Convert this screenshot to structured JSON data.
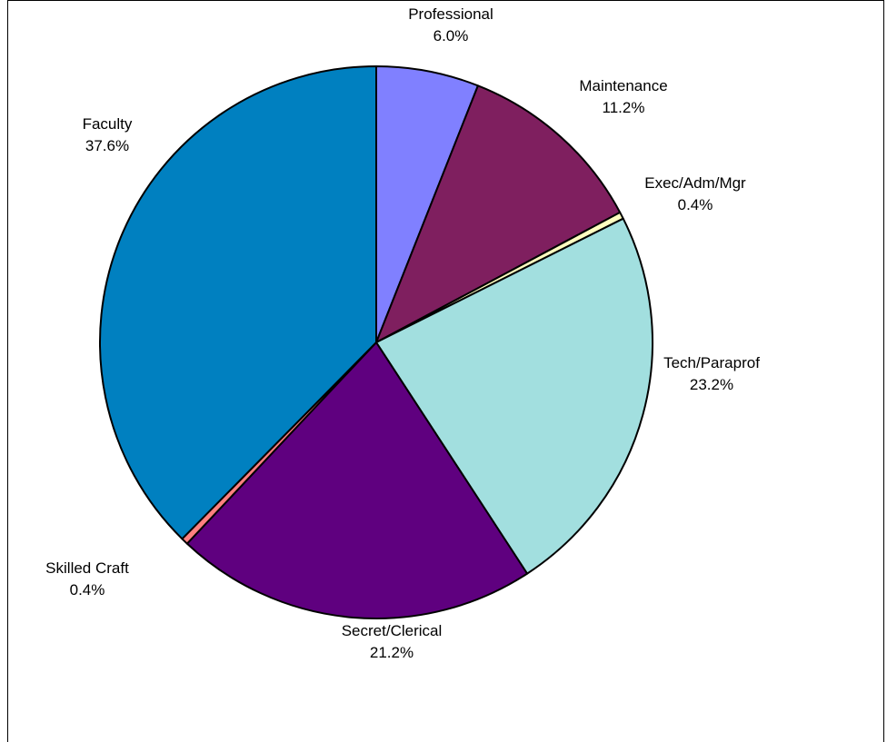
{
  "chart_data": {
    "type": "pie",
    "start_angle_deg": 0,
    "direction": "clockwise",
    "slices": [
      {
        "label": "Professional",
        "value_label": "6.0%",
        "value": 6.0,
        "color": "#8080FF"
      },
      {
        "label": "Maintenance",
        "value_label": "11.2%",
        "value": 11.2,
        "color": "#7F1F5F"
      },
      {
        "label": "Exec/Adm/Mgr",
        "value_label": "0.4%",
        "value": 0.4,
        "color": "#FFFFC0"
      },
      {
        "label": "Tech/Paraprof",
        "value_label": "23.2%",
        "value": 23.2,
        "color": "#A2DFDF"
      },
      {
        "label": "Secret/Clerical",
        "value_label": "21.2%",
        "value": 21.2,
        "color": "#5F007F"
      },
      {
        "label": "Skilled Craft",
        "value_label": "0.4%",
        "value": 0.4,
        "color": "#FF8080"
      },
      {
        "label": "Faculty",
        "value_label": "37.6%",
        "value": 37.6,
        "color": "#0080C0"
      }
    ]
  }
}
